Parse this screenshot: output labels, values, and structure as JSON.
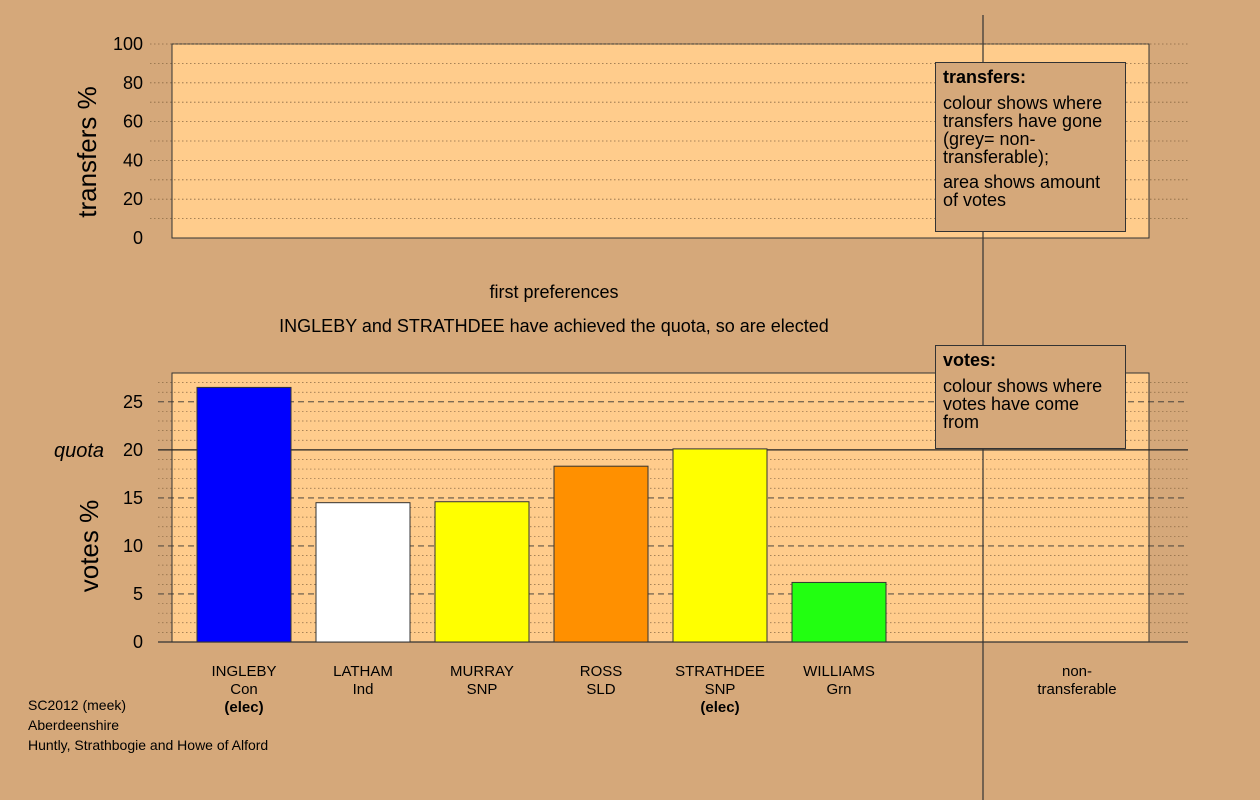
{
  "chart_data": [
    {
      "type": "bar",
      "title": "",
      "ylabel": "transfers %",
      "ylim": [
        0,
        100
      ],
      "yticks": [
        "0",
        "20",
        "40",
        "60",
        "80",
        "100"
      ],
      "grid": "dotted",
      "series": []
    },
    {
      "type": "bar",
      "title": "first preferences",
      "subtitle": "INGLEBY and STRATHDEE have achieved the quota, so are elected",
      "ylabel": "votes %",
      "ylim": [
        0,
        28
      ],
      "yticks": [
        "0",
        "5",
        "10",
        "15",
        "20",
        "25"
      ],
      "quota": 20,
      "quota_label": "quota",
      "grid": "dotted",
      "categories": [
        "INGLEBY",
        "LATHAM",
        "MURRAY",
        "ROSS",
        "STRATHDEE",
        "WILLIAMS"
      ],
      "bars": [
        {
          "name": "INGLEBY",
          "party": "Con",
          "elected": "(elec)",
          "value": 26.5,
          "color": "#0000ff"
        },
        {
          "name": "LATHAM",
          "party": "Ind",
          "elected": "",
          "value": 14.5,
          "color": "#ffffff"
        },
        {
          "name": "MURRAY",
          "party": "SNP",
          "elected": "",
          "value": 14.6,
          "color": "#ffff00"
        },
        {
          "name": "ROSS",
          "party": "SLD",
          "elected": "",
          "value": 18.3,
          "color": "#ff9000"
        },
        {
          "name": "STRATHDEE",
          "party": "SNP",
          "elected": "(elec)",
          "value": 20.1,
          "color": "#ffff00"
        },
        {
          "name": "WILLIAMS",
          "party": "Grn",
          "elected": "",
          "value": 6.2,
          "color": "#22ff11"
        }
      ],
      "nontransferable_label_1": "non-",
      "nontransferable_label_2": "transferable"
    }
  ],
  "legend_transfers": {
    "title": "transfers:",
    "p1": "colour shows where transfers have gone (grey= non-transferable);",
    "p2": "area shows amount of votes"
  },
  "legend_votes": {
    "title": "votes:",
    "p1": "colour shows where votes have come from"
  },
  "footer": {
    "line1": "SC2012 (meek)",
    "line2": "Aberdeenshire",
    "line3": "Huntly, Strathbogie and Howe of Alford"
  },
  "colors": {
    "background": "#d5a87a",
    "plot": "#ffcc8c"
  }
}
